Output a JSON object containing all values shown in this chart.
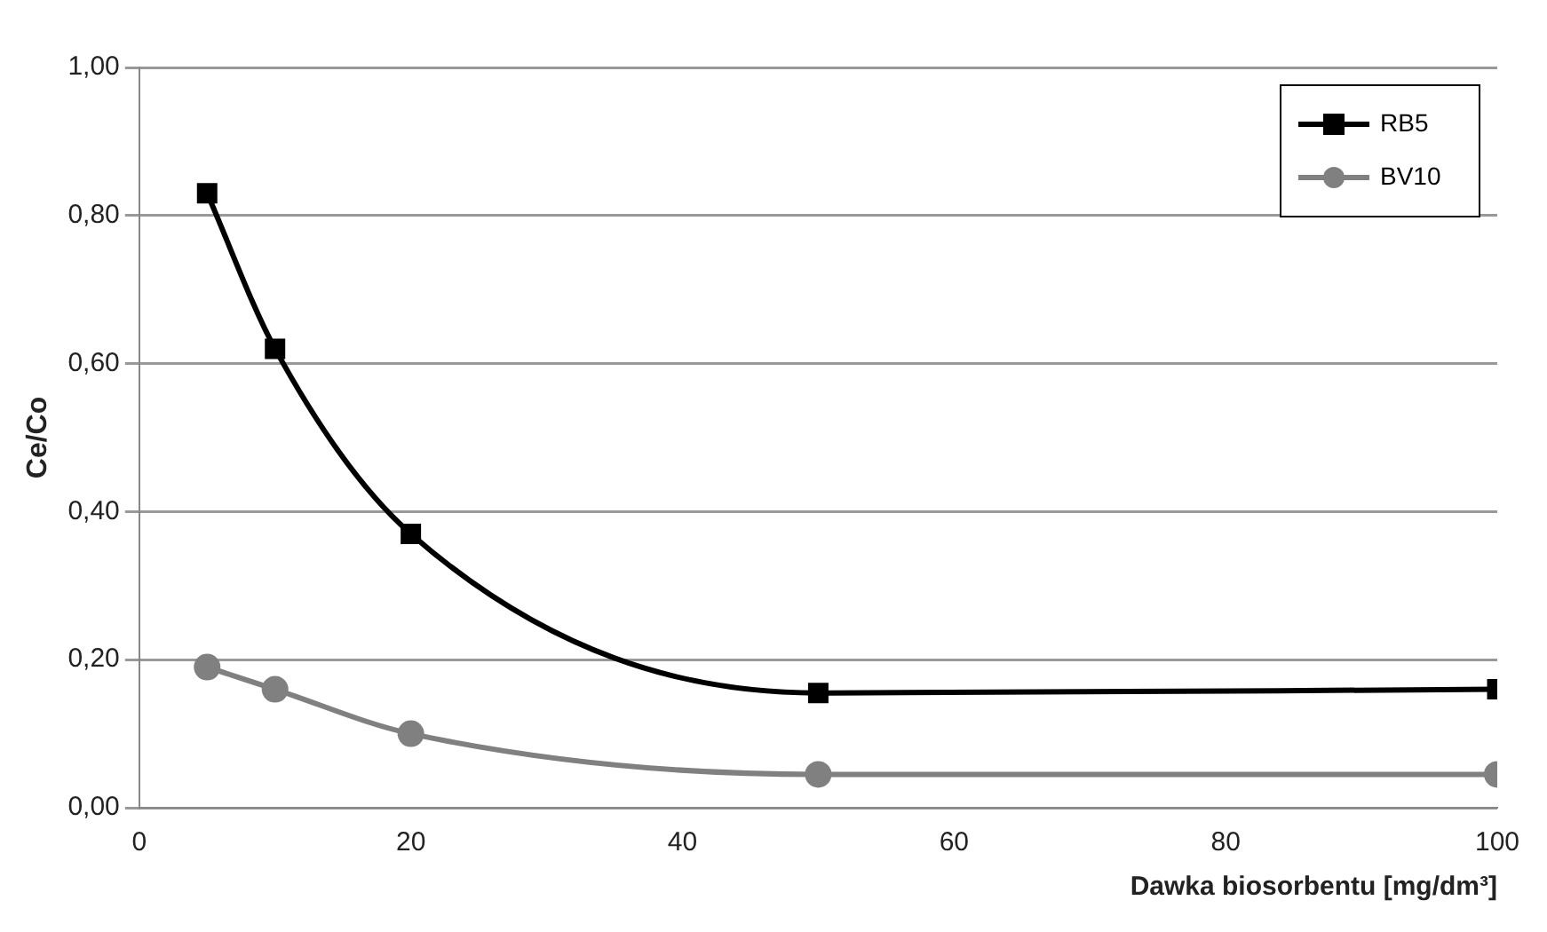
{
  "chart_data": {
    "type": "line",
    "xlabel": "Dawka biosorbentu [mg/dm³]",
    "ylabel": "Ce/Co",
    "x": [
      5,
      10,
      20,
      50,
      100
    ],
    "series": [
      {
        "name": "RB5",
        "color": "#000000",
        "marker": "square",
        "values": [
          0.83,
          0.62,
          0.37,
          0.155,
          0.16
        ]
      },
      {
        "name": "BV10",
        "color": "#808080",
        "marker": "circle",
        "values": [
          0.19,
          0.16,
          0.1,
          0.045,
          0.045
        ]
      }
    ],
    "xlim": [
      0,
      100
    ],
    "xticks": [
      0,
      20,
      40,
      60,
      80,
      100
    ],
    "ylim": [
      0,
      1
    ],
    "yticks": [
      {
        "value": 0,
        "label": "0,00"
      },
      {
        "value": 0.2,
        "label": "0,20"
      },
      {
        "value": 0.4,
        "label": "0,40"
      },
      {
        "value": 0.6,
        "label": "0,60"
      },
      {
        "value": 0.8,
        "label": "0,80"
      },
      {
        "value": 1,
        "label": "1,00"
      }
    ],
    "grid": "y",
    "legend": "top right",
    "line_style": "solid"
  }
}
